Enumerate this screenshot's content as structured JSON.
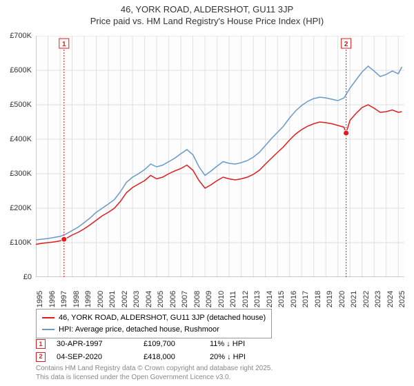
{
  "title": "46, YORK ROAD, ALDERSHOT, GU11 3JP",
  "subtitle": "Price paid vs. HM Land Registry's House Price Index (HPI)",
  "chart": {
    "type": "line",
    "background_color": "#fdfdfd",
    "grid_color": "#e0e0e0",
    "axis_color": "#999999",
    "ylim": [
      0,
      700000
    ],
    "ytick_step": 100000,
    "yticks": [
      "£0",
      "£100K",
      "£200K",
      "£300K",
      "£400K",
      "£500K",
      "£600K",
      "£700K"
    ],
    "xlim": [
      1995,
      2025.5
    ],
    "xticks": [
      1995,
      1996,
      1997,
      1998,
      1999,
      2000,
      2001,
      2002,
      2003,
      2004,
      2005,
      2006,
      2007,
      2008,
      2009,
      2010,
      2011,
      2012,
      2013,
      2014,
      2015,
      2016,
      2017,
      2018,
      2019,
      2020,
      2021,
      2022,
      2023,
      2024,
      2025
    ],
    "series": [
      {
        "name": "46, YORK ROAD, ALDERSHOT, GU11 3JP (detached house)",
        "color": "#e31a1c",
        "line_width": 1.5,
        "data": [
          [
            1995.0,
            95000
          ],
          [
            1995.5,
            98000
          ],
          [
            1996.0,
            100000
          ],
          [
            1996.5,
            102000
          ],
          [
            1997.0,
            105000
          ],
          [
            1997.33,
            109700
          ],
          [
            1997.5,
            112000
          ],
          [
            1998.0,
            122000
          ],
          [
            1998.5,
            130000
          ],
          [
            1999.0,
            140000
          ],
          [
            1999.5,
            152000
          ],
          [
            2000.0,
            165000
          ],
          [
            2000.5,
            178000
          ],
          [
            2001.0,
            188000
          ],
          [
            2001.5,
            200000
          ],
          [
            2002.0,
            220000
          ],
          [
            2002.5,
            245000
          ],
          [
            2003.0,
            260000
          ],
          [
            2003.5,
            270000
          ],
          [
            2004.0,
            280000
          ],
          [
            2004.5,
            295000
          ],
          [
            2005.0,
            285000
          ],
          [
            2005.5,
            290000
          ],
          [
            2006.0,
            300000
          ],
          [
            2006.5,
            308000
          ],
          [
            2007.0,
            315000
          ],
          [
            2007.5,
            325000
          ],
          [
            2008.0,
            310000
          ],
          [
            2008.5,
            280000
          ],
          [
            2009.0,
            258000
          ],
          [
            2009.5,
            268000
          ],
          [
            2010.0,
            280000
          ],
          [
            2010.5,
            290000
          ],
          [
            2011.0,
            285000
          ],
          [
            2011.5,
            282000
          ],
          [
            2012.0,
            285000
          ],
          [
            2012.5,
            290000
          ],
          [
            2013.0,
            298000
          ],
          [
            2013.5,
            310000
          ],
          [
            2014.0,
            328000
          ],
          [
            2014.5,
            345000
          ],
          [
            2015.0,
            362000
          ],
          [
            2015.5,
            378000
          ],
          [
            2016.0,
            398000
          ],
          [
            2016.5,
            415000
          ],
          [
            2017.0,
            428000
          ],
          [
            2017.5,
            438000
          ],
          [
            2018.0,
            445000
          ],
          [
            2018.5,
            450000
          ],
          [
            2019.0,
            448000
          ],
          [
            2019.5,
            445000
          ],
          [
            2020.0,
            440000
          ],
          [
            2020.5,
            435000
          ],
          [
            2020.68,
            418000
          ],
          [
            2021.0,
            455000
          ],
          [
            2021.5,
            475000
          ],
          [
            2022.0,
            492000
          ],
          [
            2022.5,
            500000
          ],
          [
            2023.0,
            490000
          ],
          [
            2023.5,
            478000
          ],
          [
            2024.0,
            480000
          ],
          [
            2024.5,
            485000
          ],
          [
            2025.0,
            478000
          ],
          [
            2025.3,
            480000
          ]
        ]
      },
      {
        "name": "HPI: Average price, detached house, Rushmoor",
        "color": "#6699cc",
        "line_width": 1.5,
        "data": [
          [
            1995.0,
            108000
          ],
          [
            1995.5,
            110000
          ],
          [
            1996.0,
            112000
          ],
          [
            1996.5,
            115000
          ],
          [
            1997.0,
            118000
          ],
          [
            1997.5,
            125000
          ],
          [
            1998.0,
            135000
          ],
          [
            1998.5,
            145000
          ],
          [
            1999.0,
            158000
          ],
          [
            1999.5,
            172000
          ],
          [
            2000.0,
            188000
          ],
          [
            2000.5,
            200000
          ],
          [
            2001.0,
            212000
          ],
          [
            2001.5,
            225000
          ],
          [
            2002.0,
            248000
          ],
          [
            2002.5,
            275000
          ],
          [
            2003.0,
            290000
          ],
          [
            2003.5,
            300000
          ],
          [
            2004.0,
            312000
          ],
          [
            2004.5,
            328000
          ],
          [
            2005.0,
            320000
          ],
          [
            2005.5,
            325000
          ],
          [
            2006.0,
            335000
          ],
          [
            2006.5,
            345000
          ],
          [
            2007.0,
            358000
          ],
          [
            2007.5,
            370000
          ],
          [
            2008.0,
            355000
          ],
          [
            2008.5,
            320000
          ],
          [
            2009.0,
            295000
          ],
          [
            2009.5,
            308000
          ],
          [
            2010.0,
            322000
          ],
          [
            2010.5,
            335000
          ],
          [
            2011.0,
            330000
          ],
          [
            2011.5,
            328000
          ],
          [
            2012.0,
            332000
          ],
          [
            2012.5,
            338000
          ],
          [
            2013.0,
            348000
          ],
          [
            2013.5,
            362000
          ],
          [
            2014.0,
            382000
          ],
          [
            2014.5,
            402000
          ],
          [
            2015.0,
            420000
          ],
          [
            2015.5,
            438000
          ],
          [
            2016.0,
            462000
          ],
          [
            2016.5,
            482000
          ],
          [
            2017.0,
            498000
          ],
          [
            2017.5,
            510000
          ],
          [
            2018.0,
            518000
          ],
          [
            2018.5,
            522000
          ],
          [
            2019.0,
            520000
          ],
          [
            2019.5,
            516000
          ],
          [
            2020.0,
            512000
          ],
          [
            2020.5,
            520000
          ],
          [
            2021.0,
            548000
          ],
          [
            2021.5,
            572000
          ],
          [
            2022.0,
            595000
          ],
          [
            2022.5,
            612000
          ],
          [
            2023.0,
            598000
          ],
          [
            2023.5,
            582000
          ],
          [
            2024.0,
            588000
          ],
          [
            2024.5,
            598000
          ],
          [
            2025.0,
            590000
          ],
          [
            2025.3,
            610000
          ]
        ]
      }
    ],
    "markers": [
      {
        "n": "1",
        "x": 1997.33,
        "y": 109700,
        "color": "#e31a1c",
        "label_x": 1997.33,
        "label_y": 680000
      },
      {
        "n": "2",
        "x": 2020.68,
        "y": 418000,
        "color": "#e31a1c",
        "label_x": 2020.68,
        "label_y": 680000
      }
    ]
  },
  "legend": {
    "items": [
      {
        "color": "#e31a1c",
        "label": "46, YORK ROAD, ALDERSHOT, GU11 3JP (detached house)"
      },
      {
        "color": "#6699cc",
        "label": "HPI: Average price, detached house, Rushmoor"
      }
    ]
  },
  "transactions": [
    {
      "n": "1",
      "color": "#e31a1c",
      "date": "30-APR-1997",
      "price": "£109,700",
      "diff": "11% ↓ HPI"
    },
    {
      "n": "2",
      "color": "#e31a1c",
      "date": "04-SEP-2020",
      "price": "£418,000",
      "diff": "20% ↓ HPI"
    }
  ],
  "footer": {
    "line1": "Contains HM Land Registry data © Crown copyright and database right 2025.",
    "line2": "This data is licensed under the Open Government Licence v3.0."
  }
}
